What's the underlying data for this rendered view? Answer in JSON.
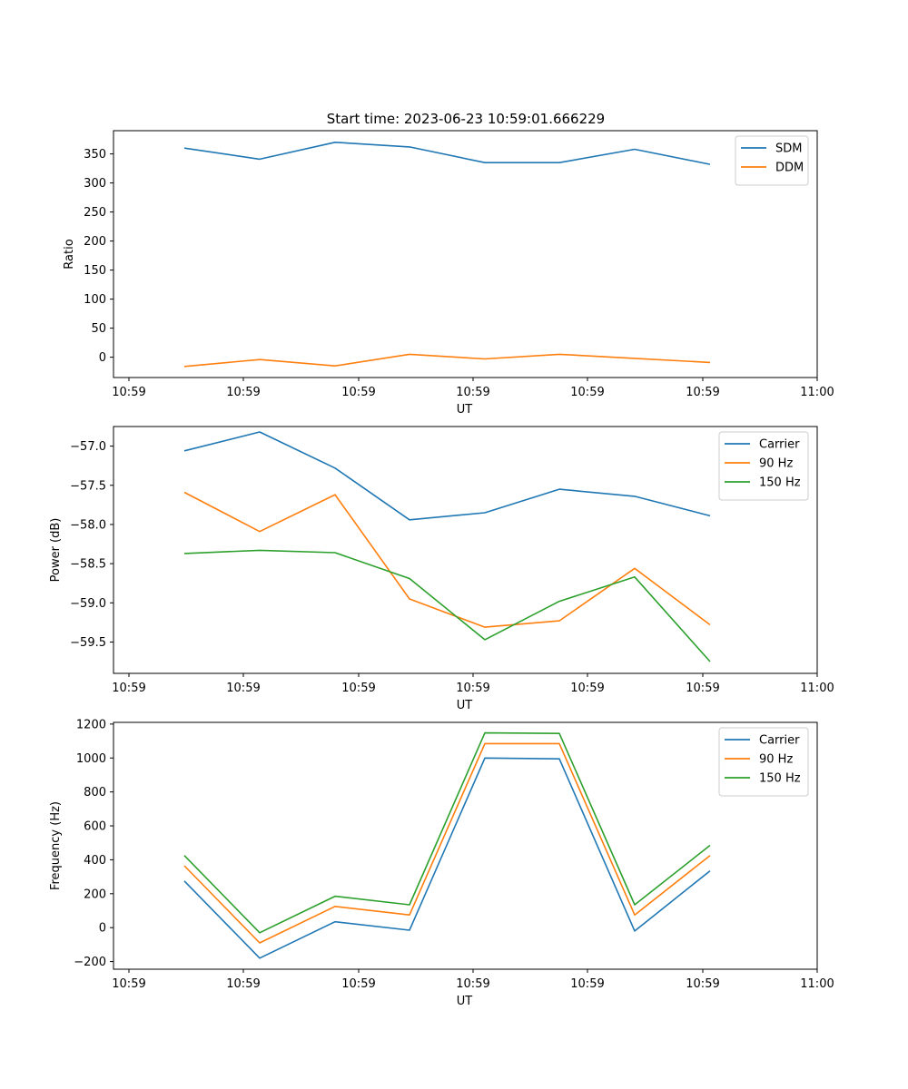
{
  "figure": {
    "title": "Start time: 2023-06-23 10:59:01.666229"
  },
  "chart_data": [
    {
      "type": "line",
      "title": "Start time: 2023-06-23 10:59:01.666229",
      "xlabel": "UT",
      "ylabel": "Ratio",
      "x_tick_labels": [
        "10:59",
        "10:59",
        "10:59",
        "10:59",
        "10:59",
        "10:59",
        "11:00"
      ],
      "y_ticks": [
        0,
        50,
        100,
        150,
        200,
        250,
        300,
        350
      ],
      "ylim": [
        -35,
        390
      ],
      "legend_position": "top-right",
      "grid": false,
      "series": [
        {
          "name": "SDM",
          "color": "#1f77b4",
          "values": [
            360,
            341,
            370,
            362,
            335,
            335,
            358,
            332
          ]
        },
        {
          "name": "DDM",
          "color": "#ff7f0e",
          "values": [
            -16,
            -4,
            -15,
            5,
            -3,
            5,
            -2,
            -9
          ]
        }
      ]
    },
    {
      "type": "line",
      "xlabel": "UT",
      "ylabel": "Power (dB)",
      "x_tick_labels": [
        "10:59",
        "10:59",
        "10:59",
        "10:59",
        "10:59",
        "10:59",
        "11:00"
      ],
      "y_ticks": [
        -59.5,
        -59.0,
        -58.5,
        -58.0,
        -57.5,
        -57.0
      ],
      "y_tick_labels": [
        "−59.5",
        "−59.0",
        "−58.5",
        "−58.0",
        "−57.5",
        "−57.0"
      ],
      "ylim": [
        -59.9,
        -56.75
      ],
      "legend_position": "top-right",
      "grid": false,
      "series": [
        {
          "name": "Carrier",
          "color": "#1f77b4",
          "values": [
            -57.06,
            -56.82,
            -57.28,
            -57.94,
            -57.85,
            -57.55,
            -57.64,
            -57.89
          ]
        },
        {
          "name": "90 Hz",
          "color": "#ff7f0e",
          "values": [
            -57.59,
            -58.09,
            -57.62,
            -58.95,
            -59.31,
            -59.23,
            -58.56,
            -59.28
          ]
        },
        {
          "name": "150 Hz",
          "color": "#2ca02c",
          "values": [
            -58.37,
            -58.33,
            -58.36,
            -58.69,
            -59.47,
            -58.98,
            -58.67,
            -59.75
          ]
        }
      ]
    },
    {
      "type": "line",
      "xlabel": "UT",
      "ylabel": "Frequency (Hz)",
      "x_tick_labels": [
        "10:59",
        "10:59",
        "10:59",
        "10:59",
        "10:59",
        "10:59",
        "11:00"
      ],
      "y_ticks": [
        -200,
        0,
        200,
        400,
        600,
        800,
        1000,
        1200
      ],
      "y_tick_labels": [
        "−200",
        "0",
        "200",
        "400",
        "600",
        "800",
        "1000",
        "1200"
      ],
      "ylim": [
        -245,
        1210
      ],
      "legend_position": "top-right",
      "grid": false,
      "series": [
        {
          "name": "Carrier",
          "color": "#1f77b4",
          "values": [
            275,
            -180,
            35,
            -15,
            1000,
            995,
            -20,
            335
          ]
        },
        {
          "name": "90 Hz",
          "color": "#ff7f0e",
          "values": [
            365,
            -90,
            125,
            75,
            1085,
            1085,
            75,
            425
          ]
        },
        {
          "name": "150 Hz",
          "color": "#2ca02c",
          "values": [
            425,
            -30,
            185,
            135,
            1148,
            1145,
            135,
            485
          ]
        }
      ]
    }
  ]
}
